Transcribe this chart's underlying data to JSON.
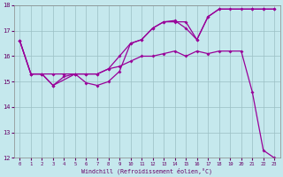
{
  "xlabel": "Windchill (Refroidissement éolien,°C)",
  "background_color": "#c5e8ed",
  "grid_color": "#9bbfc4",
  "line_color": "#990099",
  "xlim": [
    -0.5,
    23.5
  ],
  "ylim": [
    12,
    18
  ],
  "yticks": [
    12,
    13,
    14,
    15,
    16,
    17,
    18
  ],
  "xticks": [
    0,
    1,
    2,
    3,
    4,
    5,
    6,
    7,
    8,
    9,
    10,
    11,
    12,
    13,
    14,
    15,
    16,
    17,
    18,
    19,
    20,
    21,
    22,
    23
  ],
  "line1_x": [
    0,
    1,
    2,
    3,
    4,
    5,
    6,
    7,
    8,
    9,
    10,
    11,
    12,
    13,
    14,
    15,
    16,
    17,
    18,
    19,
    20,
    21,
    22,
    23
  ],
  "line1_y": [
    16.6,
    15.3,
    15.3,
    15.3,
    15.3,
    15.3,
    15.3,
    15.3,
    15.5,
    15.6,
    15.8,
    16.0,
    16.0,
    16.1,
    16.2,
    16.0,
    16.2,
    16.1,
    16.2,
    16.2,
    16.2,
    14.6,
    12.3,
    12.0
  ],
  "line2_x": [
    0,
    1,
    2,
    3,
    4,
    5,
    6,
    7,
    8,
    9,
    10,
    11,
    12,
    13,
    14,
    15,
    16,
    17,
    18,
    19,
    20,
    21,
    22,
    23
  ],
  "line2_y": [
    16.6,
    15.3,
    15.3,
    14.85,
    15.2,
    15.3,
    14.95,
    14.85,
    15.0,
    15.4,
    16.5,
    16.65,
    17.1,
    17.35,
    17.35,
    17.35,
    16.65,
    17.55,
    17.85,
    17.85,
    17.85,
    17.85,
    17.85,
    17.85
  ],
  "line3_x": [
    0,
    1,
    2,
    3,
    5,
    6,
    7,
    8,
    9,
    10,
    11,
    12,
    13,
    14,
    15,
    16,
    17,
    18,
    21,
    22,
    23
  ],
  "line3_y": [
    16.6,
    15.3,
    15.3,
    14.85,
    15.3,
    15.3,
    15.3,
    15.5,
    16.0,
    16.5,
    16.65,
    17.1,
    17.35,
    17.4,
    17.1,
    16.65,
    17.55,
    17.85,
    17.85,
    17.85,
    17.85
  ]
}
